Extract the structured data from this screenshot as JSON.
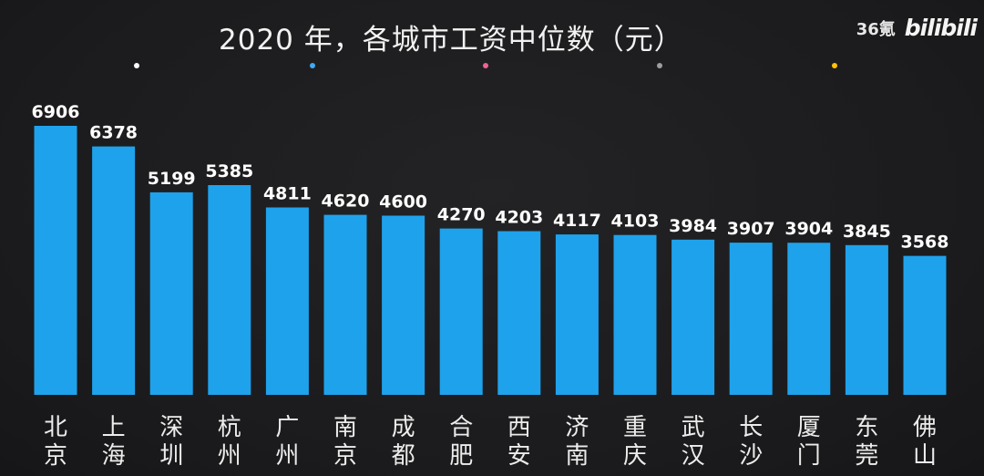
{
  "watermark": {
    "source": "36氪",
    "brand": "bilibili"
  },
  "decor_dots": [
    "#ffffff",
    "#3fa9f5",
    "#f06292",
    "#9e9e9e",
    "#ffc107"
  ],
  "chart_data": {
    "type": "bar",
    "title": "2020 年，各城市工资中位数（元）",
    "xlabel": "",
    "ylabel": "",
    "ylim": [
      0,
      7000
    ],
    "grid": false,
    "bar_color": "#1fa2ec",
    "categories": [
      "北京",
      "上海",
      "深圳",
      "杭州",
      "广州",
      "南京",
      "成都",
      "合肥",
      "西安",
      "济南",
      "重庆",
      "武汉",
      "长沙",
      "厦门",
      "东莞",
      "佛山"
    ],
    "values": [
      6906,
      6378,
      5199,
      5385,
      4811,
      4620,
      4600,
      4270,
      4203,
      4117,
      4103,
      3984,
      3907,
      3904,
      3845,
      3568
    ],
    "data_labels": [
      "6906",
      "6378",
      "5199",
      "5385",
      "4811",
      "4620",
      "4600",
      "4270",
      "4203",
      "4117",
      "4103",
      "3984",
      "3907",
      "3904",
      "3845",
      "3568"
    ]
  }
}
